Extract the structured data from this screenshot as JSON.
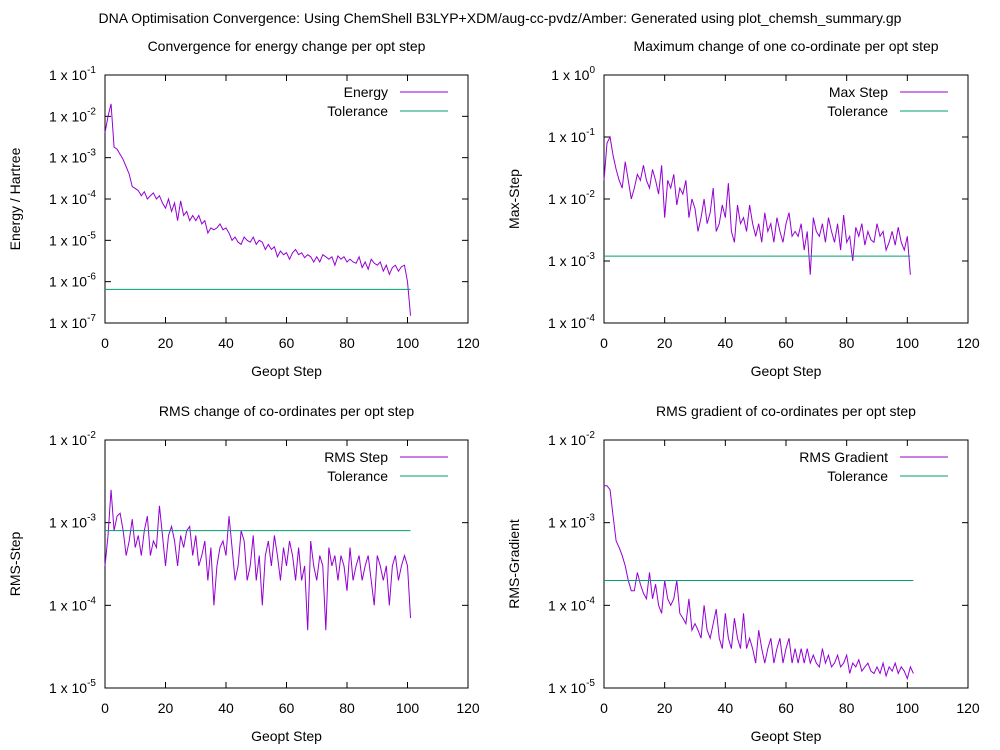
{
  "figure_title": "DNA Optimisation Convergence: Using ChemShell B3LYP+XDM/aug-cc-pvdz/Amber: Generated using plot_chemsh_summary.gp",
  "colors": {
    "data": "#9400d3",
    "tolerance": "#009e73",
    "axes": "#000000",
    "background": "#ffffff"
  },
  "chart_data": [
    {
      "type": "line",
      "title": "Convergence for energy change per opt step",
      "xlabel": "Geopt Step",
      "ylabel": "Energy / Hartree",
      "xlim": [
        0,
        120
      ],
      "ylim_exp": [
        -7,
        -1
      ],
      "yscale": "log",
      "legend_position": "top-right",
      "x_ticks": [
        "0",
        "20",
        "40",
        "60",
        "80",
        "100",
        "120"
      ],
      "y_ticks": [
        {
          "base": "1 x 10",
          "exp": "-7"
        },
        {
          "base": "1 x 10",
          "exp": "-6"
        },
        {
          "base": "1 x 10",
          "exp": "-5"
        },
        {
          "base": "1 x 10",
          "exp": "-4"
        },
        {
          "base": "1 x 10",
          "exp": "-3"
        },
        {
          "base": "1 x 10",
          "exp": "-2"
        },
        {
          "base": "1 x 10",
          "exp": "-1"
        }
      ],
      "series": [
        {
          "name": "Energy",
          "x_start": 0,
          "values": [
            0.004,
            0.01,
            0.02,
            0.0018,
            0.0016,
            0.0012,
            0.0009,
            0.0006,
            0.0004,
            0.0002,
            0.00018,
            0.00016,
            0.00012,
            0.00015,
            0.0001,
            0.00012,
            0.00014,
            0.0001,
            0.00012,
            8e-05,
            6e-05,
            0.0001,
            5e-05,
            8e-05,
            3e-05,
            9e-05,
            4e-05,
            5e-05,
            3e-05,
            4e-05,
            3e-05,
            4e-05,
            2.5e-05,
            3e-05,
            1.5e-05,
            2e-05,
            1.8e-05,
            2e-05,
            2.5e-05,
            1.8e-05,
            2e-05,
            1.5e-05,
            1e-05,
            1.2e-05,
            9e-06,
            8e-06,
            1.2e-05,
            1e-05,
            9e-06,
            1.2e-05,
            8e-06,
            1e-05,
            9e-06,
            6e-06,
            8e-06,
            6e-06,
            7e-06,
            4e-06,
            5.5e-06,
            4.5e-06,
            5e-06,
            3.5e-06,
            5e-06,
            6e-06,
            4.5e-06,
            5e-06,
            3.8e-06,
            4.5e-06,
            4e-06,
            3e-06,
            4e-06,
            3e-06,
            4.5e-06,
            4e-06,
            3.5e-06,
            4e-06,
            2.5e-06,
            4.2e-06,
            3.5e-06,
            4e-06,
            3e-06,
            3.5e-06,
            3e-06,
            2.8e-06,
            4e-06,
            2.2e-06,
            3e-06,
            2e-06,
            3.5e-06,
            2.8e-06,
            2.5e-06,
            3e-06,
            1.8e-06,
            2.5e-06,
            1.5e-06,
            2.2e-06,
            2.5e-06,
            1.8e-06,
            2.3e-06,
            2.5e-06,
            1e-06,
            1.5e-07
          ]
        },
        {
          "name": "Tolerance",
          "x": [
            0,
            101
          ],
          "values": [
            6.5e-07,
            6.5e-07
          ]
        }
      ]
    },
    {
      "type": "line",
      "title": "Maximum change of one co-ordinate per opt step",
      "xlabel": "Geopt Step",
      "ylabel": "Max-Step",
      "xlim": [
        0,
        120
      ],
      "ylim_exp": [
        -4,
        0
      ],
      "yscale": "log",
      "legend_position": "top-right",
      "x_ticks": [
        "0",
        "20",
        "40",
        "60",
        "80",
        "100",
        "120"
      ],
      "y_ticks": [
        {
          "base": "1 x 10",
          "exp": "-4"
        },
        {
          "base": "1 x 10",
          "exp": "-3"
        },
        {
          "base": "1 x 10",
          "exp": "-2"
        },
        {
          "base": "1 x 10",
          "exp": "-1"
        },
        {
          "base": "1 x 10",
          "exp": "0"
        }
      ],
      "series": [
        {
          "name": "Max Step",
          "x_start": 0,
          "values": [
            0.02,
            0.08,
            0.1,
            0.05,
            0.03,
            0.02,
            0.015,
            0.04,
            0.02,
            0.01,
            0.015,
            0.025,
            0.02,
            0.035,
            0.02,
            0.015,
            0.03,
            0.02,
            0.012,
            0.035,
            0.005,
            0.02,
            0.015,
            0.025,
            0.008,
            0.015,
            0.012,
            0.02,
            0.005,
            0.01,
            0.007,
            0.003,
            0.005,
            0.01,
            0.004,
            0.006,
            0.015,
            0.003,
            0.004,
            0.008,
            0.005,
            0.018,
            0.003,
            0.002,
            0.008,
            0.004,
            0.005,
            0.003,
            0.008,
            0.004,
            0.0025,
            0.004,
            0.002,
            0.006,
            0.003,
            0.004,
            0.002,
            0.005,
            0.003,
            0.002,
            0.004,
            0.006,
            0.0025,
            0.003,
            0.0025,
            0.004,
            0.0015,
            0.003,
            0.0006,
            0.005,
            0.003,
            0.0025,
            0.004,
            0.002,
            0.005,
            0.003,
            0.002,
            0.004,
            0.0015,
            0.0055,
            0.002,
            0.0025,
            0.001,
            0.0035,
            0.0025,
            0.004,
            0.0018,
            0.003,
            0.0022,
            0.002,
            0.004,
            0.0025,
            0.003,
            0.0015,
            0.002,
            0.003,
            0.0018,
            0.0035,
            0.002,
            0.0015,
            0.0025,
            0.0006
          ]
        },
        {
          "name": "Tolerance",
          "x": [
            0,
            101
          ],
          "values": [
            0.0012,
            0.0012
          ]
        }
      ]
    },
    {
      "type": "line",
      "title": "RMS change of co-ordinates per opt step",
      "xlabel": "Geopt Step",
      "ylabel": "RMS-Step",
      "xlim": [
        0,
        120
      ],
      "ylim_exp": [
        -5,
        -2
      ],
      "yscale": "log",
      "legend_position": "top-right",
      "x_ticks": [
        "0",
        "20",
        "40",
        "60",
        "80",
        "100",
        "120"
      ],
      "y_ticks": [
        {
          "base": "1 x 10",
          "exp": "-5"
        },
        {
          "base": "1 x 10",
          "exp": "-4"
        },
        {
          "base": "1 x 10",
          "exp": "-3"
        },
        {
          "base": "1 x 10",
          "exp": "-2"
        }
      ],
      "series": [
        {
          "name": "RMS Step",
          "x_start": 0,
          "values": [
            0.0003,
            0.0007,
            0.0025,
            0.0008,
            0.0012,
            0.0013,
            0.0008,
            0.0004,
            0.0006,
            0.0011,
            0.0005,
            0.0007,
            0.0004,
            0.0008,
            0.0012,
            0.0004,
            0.0006,
            0.0005,
            0.0016,
            0.0007,
            0.0003,
            0.0007,
            0.0009,
            0.0006,
            0.0003,
            0.0007,
            0.0005,
            0.0008,
            0.0009,
            0.0004,
            0.0007,
            0.0003,
            0.0004,
            0.0006,
            0.0002,
            0.0005,
            0.0001,
            0.0003,
            0.0005,
            0.0006,
            0.0004,
            0.0012,
            0.0005,
            0.0002,
            0.0003,
            0.0008,
            0.0006,
            0.0002,
            0.0003,
            0.0007,
            0.0002,
            0.0004,
            0.0001,
            0.0004,
            0.0006,
            0.0003,
            0.0007,
            0.0004,
            0.0002,
            0.0005,
            0.0003,
            0.0006,
            0.0004,
            0.0002,
            0.0005,
            0.0002,
            0.0003,
            5e-05,
            0.0006,
            0.0003,
            0.0002,
            0.0004,
            0.0003,
            5e-05,
            0.0005,
            0.0003,
            0.0004,
            0.0002,
            0.0004,
            0.0003,
            0.00015,
            0.0005,
            0.0002,
            0.0003,
            0.0004,
            0.0002,
            0.0003,
            0.0004,
            0.0002,
            0.0001,
            0.0004,
            0.0003,
            0.0002,
            0.0003,
            0.0001,
            0.0003,
            0.0004,
            0.0002,
            0.0003,
            0.0004,
            0.0003,
            7e-05
          ]
        },
        {
          "name": "Tolerance",
          "x": [
            0,
            101
          ],
          "values": [
            0.0008,
            0.0008
          ]
        }
      ]
    },
    {
      "type": "line",
      "title": "RMS gradient of co-ordinates per opt step",
      "xlabel": "Geopt Step",
      "ylabel": "RMS-Gradient",
      "xlim": [
        0,
        120
      ],
      "ylim_exp": [
        -5,
        -2
      ],
      "yscale": "log",
      "legend_position": "top-right",
      "x_ticks": [
        "0",
        "20",
        "40",
        "60",
        "80",
        "100",
        "120"
      ],
      "y_ticks": [
        {
          "base": "1 x 10",
          "exp": "-5"
        },
        {
          "base": "1 x 10",
          "exp": "-4"
        },
        {
          "base": "1 x 10",
          "exp": "-3"
        },
        {
          "base": "1 x 10",
          "exp": "-2"
        }
      ],
      "series": [
        {
          "name": "RMS Gradient",
          "x_start": 0,
          "values": [
            0.0028,
            0.0028,
            0.0025,
            0.0012,
            0.0006,
            0.0005,
            0.0004,
            0.0003,
            0.0002,
            0.00015,
            0.00015,
            0.00025,
            0.00018,
            0.00014,
            0.00012,
            0.00025,
            0.00012,
            0.00018,
            0.0001,
            8e-05,
            0.0002,
            0.00012,
            0.0001,
            0.00012,
            0.0002,
            8e-05,
            7e-05,
            6e-05,
            0.00012,
            5e-05,
            6e-05,
            5e-05,
            4e-05,
            0.0001,
            5e-05,
            4e-05,
            6e-05,
            9e-05,
            4e-05,
            3e-05,
            8e-05,
            4e-05,
            3e-05,
            7e-05,
            4e-05,
            3e-05,
            8e-05,
            3e-05,
            4e-05,
            3e-05,
            2e-05,
            5e-05,
            3e-05,
            2e-05,
            3e-05,
            4e-05,
            2e-05,
            3e-05,
            4e-05,
            2e-05,
            3e-05,
            4e-05,
            2e-05,
            3e-05,
            2e-05,
            3e-05,
            2e-05,
            3e-05,
            2e-05,
            2.5e-05,
            2e-05,
            1.8e-05,
            3e-05,
            2e-05,
            2.5e-05,
            1.8e-05,
            2e-05,
            2.5e-05,
            1.8e-05,
            2e-05,
            2.5e-05,
            1.5e-05,
            2e-05,
            1.8e-05,
            2.2e-05,
            1.6e-05,
            1.8e-05,
            2e-05,
            1.6e-05,
            1.5e-05,
            1.8e-05,
            1.5e-05,
            2e-05,
            1.4e-05,
            1.8e-05,
            1.6e-05,
            2e-05,
            1.5e-05,
            1.8e-05,
            1.6e-05,
            1.3e-05,
            1.8e-05,
            1.5e-05
          ]
        },
        {
          "name": "Tolerance",
          "x": [
            0,
            102
          ],
          "values": [
            0.0002,
            0.0002
          ]
        }
      ]
    }
  ]
}
